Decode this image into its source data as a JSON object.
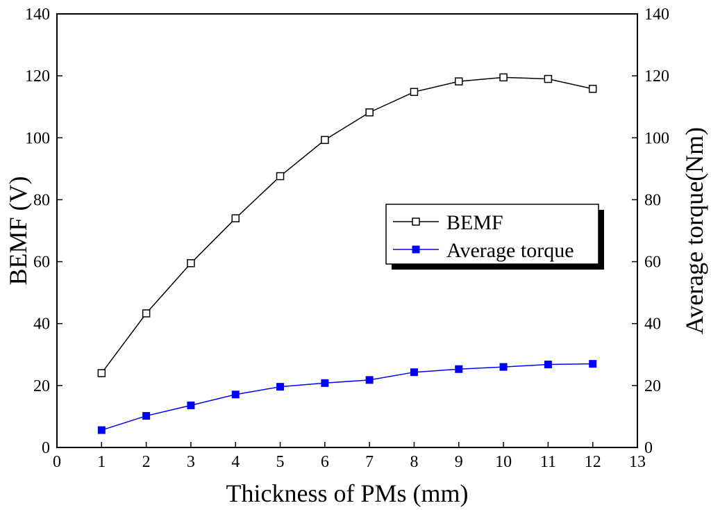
{
  "chart_data": {
    "type": "line",
    "title": "",
    "xlabel": "Thickness of PMs (mm)",
    "ylabel_left": "BEMF (V)",
    "ylabel_right": "Average torque(Nm)",
    "xlim": [
      0,
      13
    ],
    "ylim_left": [
      0,
      140
    ],
    "ylim_right": [
      0,
      140
    ],
    "x_ticks": [
      0,
      1,
      2,
      3,
      4,
      5,
      6,
      7,
      8,
      9,
      10,
      11,
      12,
      13
    ],
    "y_ticks": [
      0,
      20,
      40,
      60,
      80,
      100,
      120,
      140
    ],
    "grid": false,
    "legend_position": "center-right",
    "x": [
      1,
      2,
      3,
      4,
      5,
      6,
      7,
      8,
      9,
      10,
      11,
      12
    ],
    "series": [
      {
        "name": "BEMF",
        "axis": "left",
        "marker": "open-square",
        "color": "#000000",
        "values": [
          24.0,
          43.3,
          59.5,
          74.0,
          87.6,
          99.3,
          108.2,
          114.8,
          118.2,
          119.5,
          119.0,
          115.8
        ]
      },
      {
        "name": "Average torque",
        "axis": "right",
        "marker": "filled-square",
        "color": "#0000ff",
        "values": [
          5.6,
          10.2,
          13.6,
          17.1,
          19.6,
          20.8,
          21.8,
          24.3,
          25.3,
          26.0,
          26.8,
          27.0
        ]
      }
    ]
  }
}
